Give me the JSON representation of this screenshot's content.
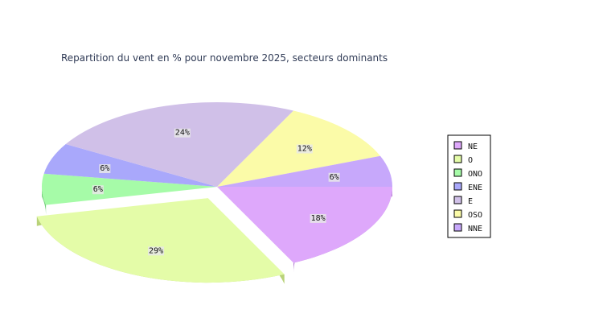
{
  "chart_data": {
    "type": "pie",
    "title": "Repartition du vent en % pour novembre 2025, secteurs dominants",
    "categories": [
      "NE",
      "O",
      "ONO",
      "ENE",
      "E",
      "OSO",
      "NNE"
    ],
    "values": [
      18,
      29,
      6,
      6,
      24,
      12,
      6
    ],
    "value_labels": [
      "18%",
      "29%",
      "6%",
      "6%",
      "24%",
      "12%",
      "6%"
    ],
    "colors": [
      "#dea8fb",
      "#e4fca8",
      "#a6fba8",
      "#a9a8fb",
      "#d0c0e8",
      "#fbfba8",
      "#c7a8fb"
    ],
    "side_colors": [
      "#b37ed3",
      "#b9d279",
      "#72cf7a",
      "#7f7ed3",
      "#a697c0",
      "#d0d07e",
      "#9b80d3"
    ],
    "exploded": [
      "O"
    ],
    "legend_position": "right",
    "three_d": true
  }
}
